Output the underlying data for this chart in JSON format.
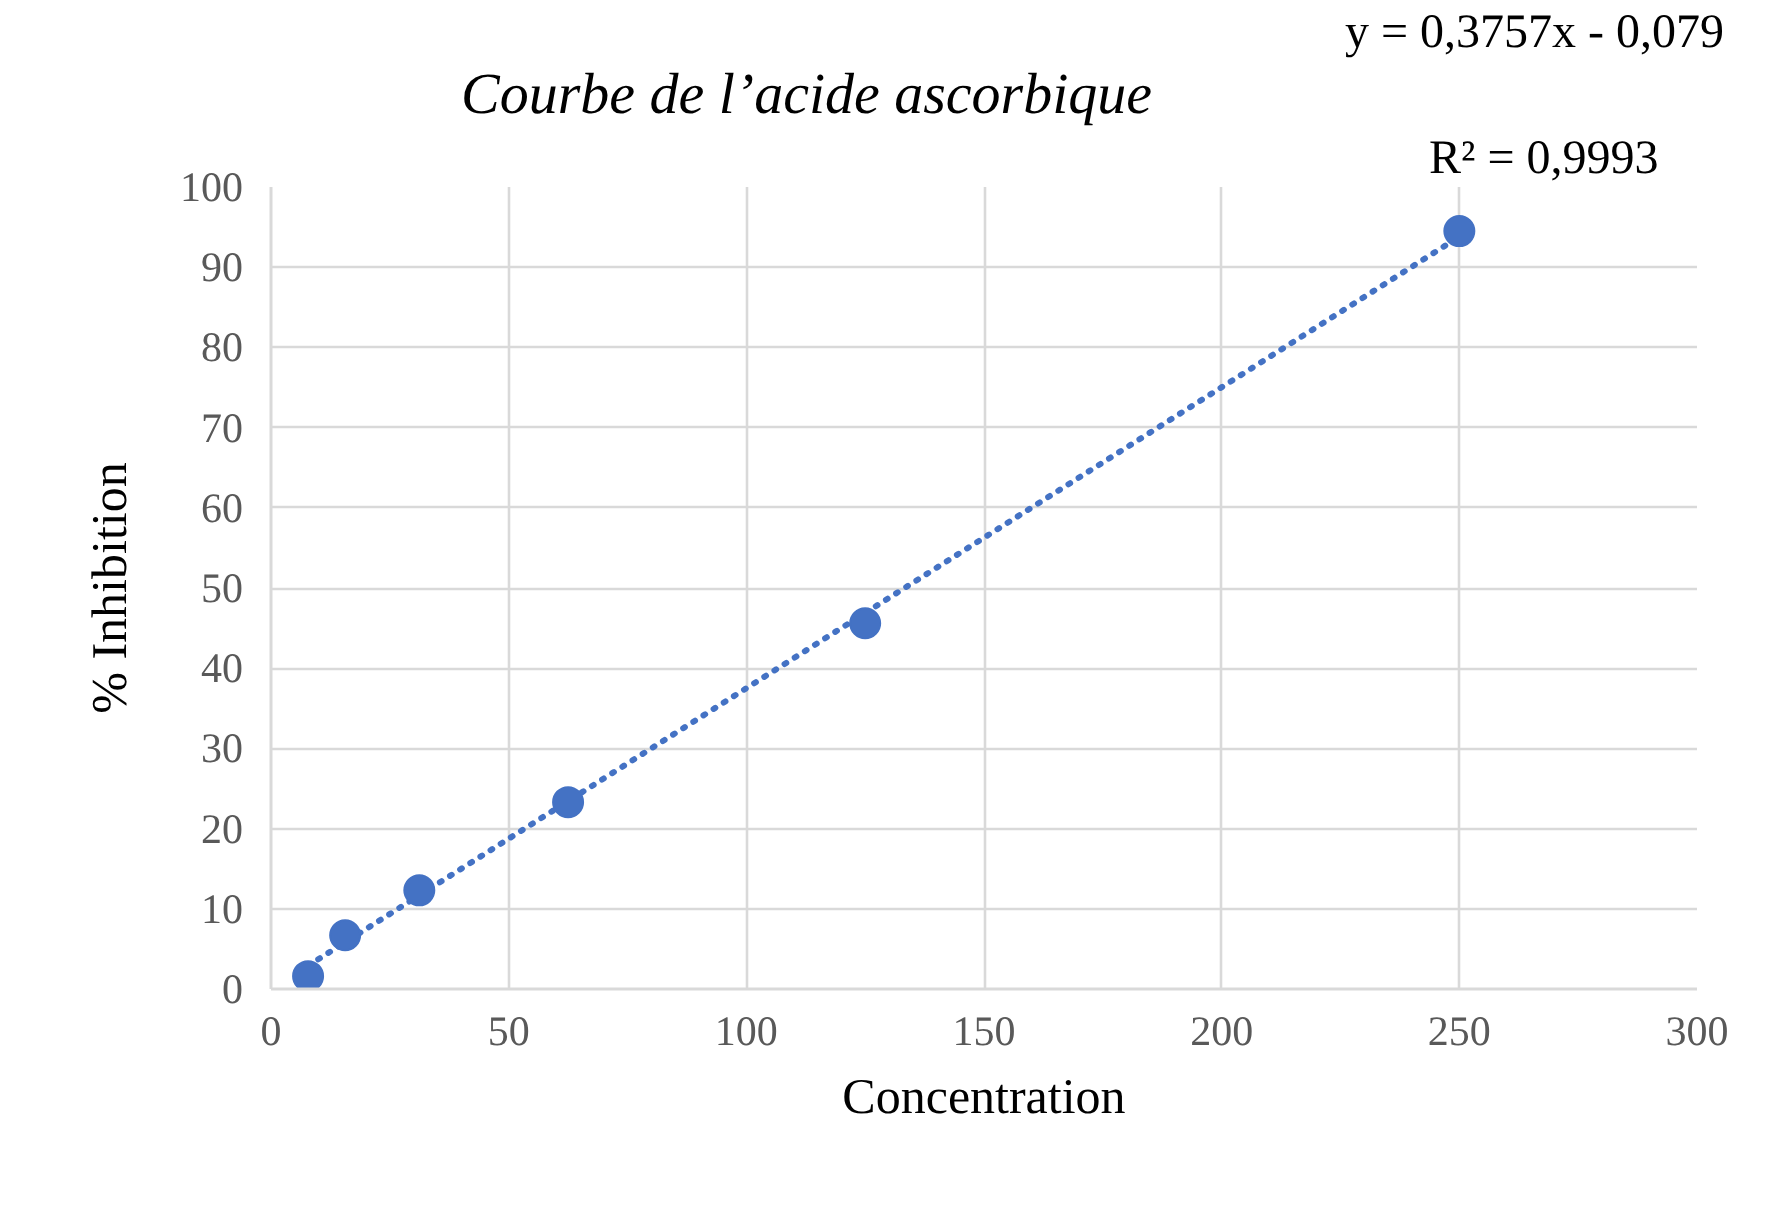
{
  "chart_data": {
    "type": "scatter",
    "title": "Courbe de l’acide ascorbique",
    "xlabel": "Concentration",
    "ylabel": "% Inhibition",
    "annotations": [
      "y = 0,3757x - 0,079",
      "R² = 0,9993"
    ],
    "xlim": [
      0,
      300
    ],
    "ylim": [
      0,
      100
    ],
    "xticks": [
      0,
      50,
      100,
      150,
      200,
      250,
      300
    ],
    "yticks": [
      0,
      10,
      20,
      30,
      40,
      50,
      60,
      70,
      80,
      90,
      100
    ],
    "grid": true,
    "series": [
      {
        "type": "scatter",
        "color": "#4472c4",
        "marker": "circle",
        "x": [
          7.8,
          15.6,
          31.2,
          62.5,
          125,
          250
        ],
        "values": [
          1.6,
          6.7,
          12.3,
          23.3,
          45.6,
          94.5
        ]
      },
      {
        "type": "line",
        "color": "#4472c4",
        "line_style": "dotted",
        "marker": "none",
        "x": [
          7.8,
          250
        ],
        "values": [
          2.9,
          93.8
        ]
      }
    ]
  }
}
